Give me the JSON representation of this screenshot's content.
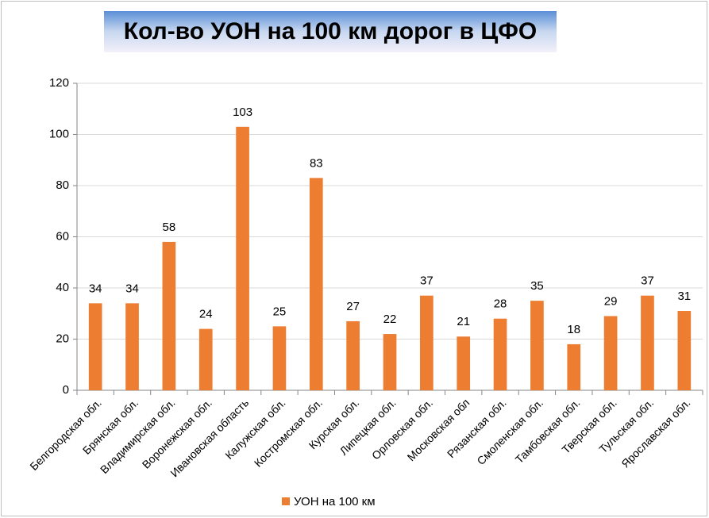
{
  "chart_data": {
    "type": "bar",
    "title": "Кол-во УОН на 100 км дорог в ЦФО",
    "categories": [
      "Белгородская обл.",
      "Брянская обл.",
      "Владимирская обл.",
      "Воронежская обл.",
      "Ивановская область",
      "Калужская обл.",
      "Костромская обл.",
      "Курская обл.",
      "Липецкая обл.",
      "Орловская обл.",
      "Московская обл",
      "Рязанская обл.",
      "Смоленская обл.",
      "Тамбовская обл.",
      "Тверская обл.",
      "Тульская обл.",
      "Ярославская обл."
    ],
    "series": [
      {
        "name": "УОН на 100 км",
        "color": "#ed7d31",
        "values": [
          34,
          34,
          58,
          24,
          103,
          25,
          83,
          27,
          22,
          37,
          21,
          28,
          35,
          18,
          29,
          37,
          31
        ]
      }
    ],
    "ylim": [
      0,
      120
    ],
    "yticks": [
      0,
      20,
      40,
      60,
      80,
      100,
      120
    ],
    "grid": true,
    "legend": "bottom"
  }
}
